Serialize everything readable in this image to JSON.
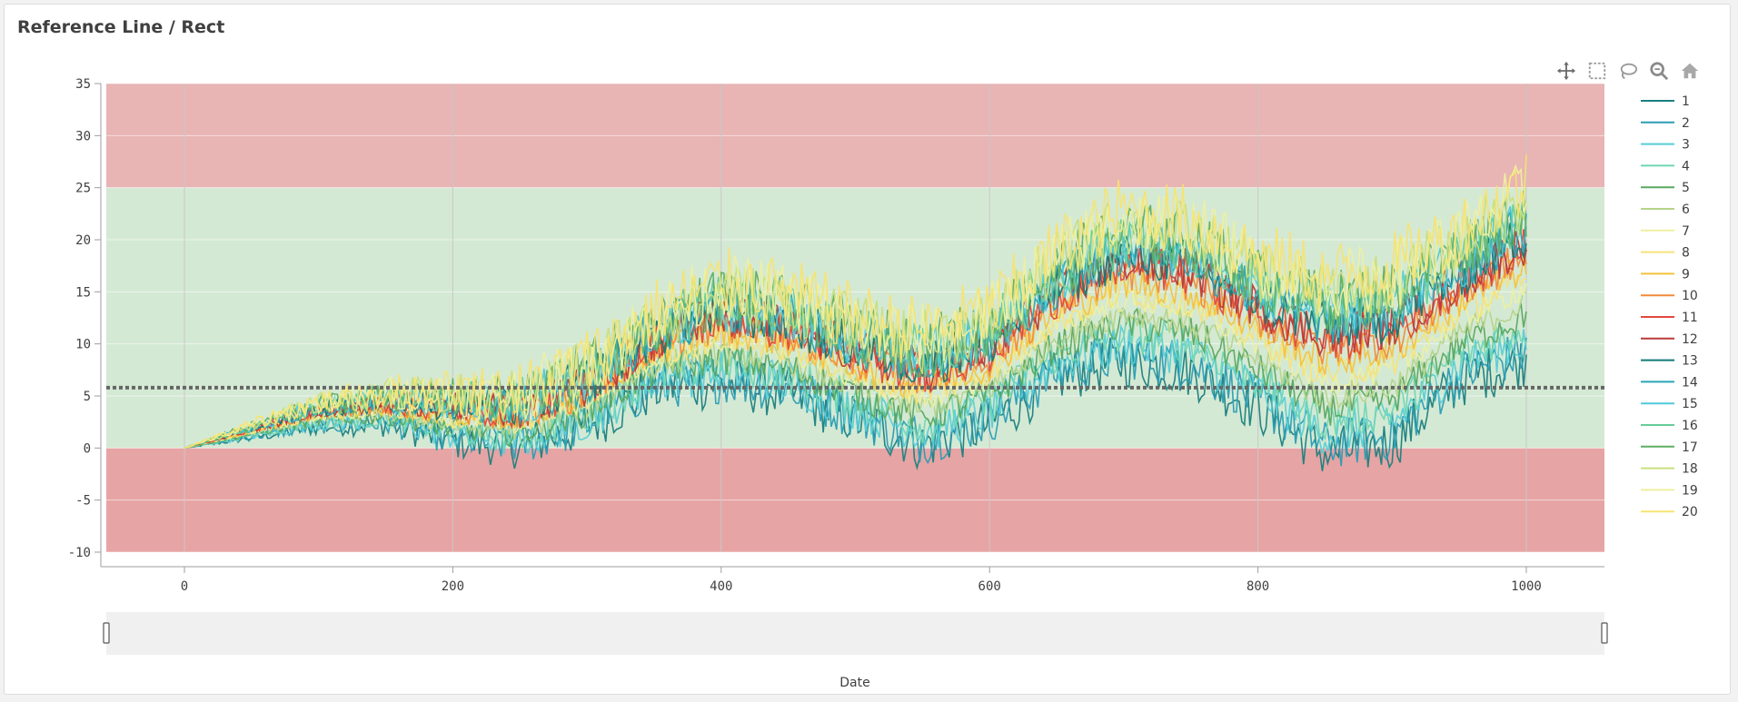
{
  "title": "Reference Line / Rect",
  "toolbar": [
    {
      "name": "pan-tool",
      "icon": "move-arrows-icon"
    },
    {
      "name": "box-select-tool",
      "icon": "box-select-icon"
    },
    {
      "name": "lasso-select-tool",
      "icon": "lasso-icon"
    },
    {
      "name": "zoom-tool",
      "icon": "zoom-icon"
    },
    {
      "name": "reset-home-tool",
      "icon": "home-icon"
    }
  ],
  "chart_data": {
    "type": "line",
    "title": "Reference Line / Rect",
    "xlabel": "Date",
    "ylabel": "",
    "xlim": [
      -60,
      1055
    ],
    "ylim": [
      -11,
      35
    ],
    "xticks": [
      0,
      200,
      400,
      600,
      800,
      1000
    ],
    "yticks": [
      35,
      30,
      25,
      20,
      15,
      10,
      5,
      0,
      -5,
      -10
    ],
    "grid": true,
    "legend_position": "right",
    "reference_line": {
      "y": 5.8,
      "style": "dotted",
      "color": "#666666"
    },
    "reference_rects": [
      {
        "y0": 25,
        "y1": 35,
        "x0": -55,
        "x1": 1055,
        "color": "#e8b4b4"
      },
      {
        "y0": 0,
        "y1": 25,
        "x0": -55,
        "x1": 1055,
        "color": "#d4e9d4"
      },
      {
        "y0": -10,
        "y1": 0,
        "x0": -55,
        "x1": 1055,
        "color": "#e7a4a4"
      }
    ],
    "series": [
      {
        "name": "1",
        "color": "#1b7f7f",
        "scale": -0.85
      },
      {
        "name": "2",
        "color": "#2a9db4",
        "scale": -0.75
      },
      {
        "name": "3",
        "color": "#56cdd6",
        "scale": -0.6
      },
      {
        "name": "4",
        "color": "#6fd6b4",
        "scale": -0.45
      },
      {
        "name": "5",
        "color": "#5aa860",
        "scale": -0.3
      },
      {
        "name": "6",
        "color": "#b6d48a",
        "scale": -0.15
      },
      {
        "name": "7",
        "color": "#eef0a0",
        "scale": 0.05
      },
      {
        "name": "8",
        "color": "#f6e27a",
        "scale": 0.15
      },
      {
        "name": "9",
        "color": "#f4c23c",
        "scale": 0.3
      },
      {
        "name": "10",
        "color": "#f28a3a",
        "scale": 0.45
      },
      {
        "name": "11",
        "color": "#e0493c",
        "scale": 0.55
      },
      {
        "name": "12",
        "color": "#b83a3a",
        "scale": 0.62
      },
      {
        "name": "13",
        "color": "#117a78",
        "scale": 0.72
      },
      {
        "name": "14",
        "color": "#2aa4b6",
        "scale": 0.8
      },
      {
        "name": "15",
        "color": "#4fc9d9",
        "scale": 0.88
      },
      {
        "name": "16",
        "color": "#66cc99",
        "scale": 0.95
      },
      {
        "name": "17",
        "color": "#5fae64",
        "scale": 1.05
      },
      {
        "name": "18",
        "color": "#c9df7e",
        "scale": 1.15
      },
      {
        "name": "19",
        "color": "#eef0a0",
        "scale": 1.25
      },
      {
        "name": "20",
        "color": "#f7e372",
        "scale": 1.35
      }
    ],
    "base_curve": {
      "x": [
        0,
        100,
        150,
        200,
        250,
        300,
        350,
        400,
        450,
        500,
        550,
        600,
        650,
        700,
        750,
        800,
        850,
        900,
        950,
        1000
      ],
      "y": [
        0,
        3,
        3.5,
        2.5,
        2.2,
        4.5,
        8.5,
        10,
        9,
        6.5,
        4.5,
        6.5,
        11.5,
        14,
        13,
        9.5,
        6,
        7,
        12,
        15
      ],
      "spread": [
        0,
        2,
        2.5,
        4,
        4.5,
        5,
        6,
        8,
        8,
        8,
        9,
        9,
        10,
        12,
        12,
        12,
        14,
        14,
        12,
        14
      ]
    }
  },
  "range_slider": {
    "label": "Date"
  }
}
